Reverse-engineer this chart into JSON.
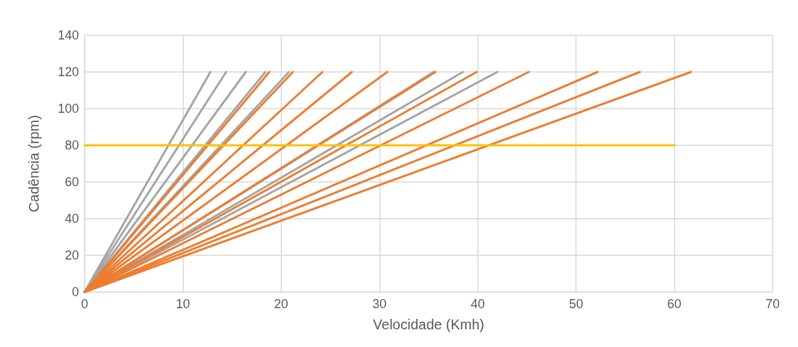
{
  "chart_data": {
    "type": "line",
    "xlabel": "Velocidade (Kmh)",
    "ylabel": "Cadência (rpm)",
    "xlim": [
      0,
      70
    ],
    "xticks": [
      0,
      10,
      20,
      30,
      40,
      50,
      60,
      70
    ],
    "ylim": [
      0,
      140
    ],
    "yticks": [
      0,
      20,
      40,
      60,
      80,
      100,
      120,
      140
    ],
    "grid": true,
    "marker": "none",
    "line_style": "solid",
    "series": [
      {
        "color": "#a5a5a5",
        "x": [
          0,
          12.8
        ],
        "values": [
          0,
          120
        ]
      },
      {
        "color": "#a5a5a5",
        "x": [
          0,
          14.4
        ],
        "values": [
          0,
          120
        ]
      },
      {
        "color": "#a5a5a5",
        "x": [
          0,
          16.4
        ],
        "values": [
          0,
          120
        ]
      },
      {
        "color": "#a5a5a5",
        "x": [
          0,
          18.4
        ],
        "values": [
          0,
          120
        ]
      },
      {
        "color": "#a5a5a5",
        "x": [
          0,
          20.8
        ],
        "values": [
          0,
          120
        ]
      },
      {
        "color": "#a5a5a5",
        "x": [
          0,
          35.5
        ],
        "values": [
          0,
          120
        ]
      },
      {
        "color": "#a5a5a5",
        "x": [
          0,
          38.5
        ],
        "values": [
          0,
          120
        ]
      },
      {
        "color": "#a5a5a5",
        "x": [
          0,
          42
        ],
        "values": [
          0,
          120
        ]
      },
      {
        "color": "#ed7d31",
        "x": [
          0,
          18.8
        ],
        "values": [
          0,
          120
        ]
      },
      {
        "color": "#ed7d31",
        "x": [
          0,
          21.2
        ],
        "values": [
          0,
          120
        ]
      },
      {
        "color": "#ed7d31",
        "x": [
          0,
          24.2
        ],
        "values": [
          0,
          120
        ]
      },
      {
        "color": "#ed7d31",
        "x": [
          0,
          27.2
        ],
        "values": [
          0,
          120
        ]
      },
      {
        "color": "#ed7d31",
        "x": [
          0,
          30.8
        ],
        "values": [
          0,
          120
        ]
      },
      {
        "color": "#ed7d31",
        "x": [
          0,
          35.7
        ],
        "values": [
          0,
          120
        ]
      },
      {
        "color": "#ed7d31",
        "x": [
          0,
          39.9
        ],
        "values": [
          0,
          120
        ]
      },
      {
        "color": "#ed7d31",
        "x": [
          0,
          45.2
        ],
        "values": [
          0,
          120
        ]
      },
      {
        "color": "#ed7d31",
        "x": [
          0,
          52.2
        ],
        "values": [
          0,
          120
        ]
      },
      {
        "color": "#ed7d31",
        "x": [
          0,
          56.5
        ],
        "values": [
          0,
          120
        ]
      },
      {
        "color": "#ed7d31",
        "x": [
          0,
          61.7
        ],
        "values": [
          0,
          120
        ]
      },
      {
        "color": "#ffc000",
        "x": [
          0,
          60
        ],
        "values": [
          80,
          80
        ]
      }
    ]
  }
}
